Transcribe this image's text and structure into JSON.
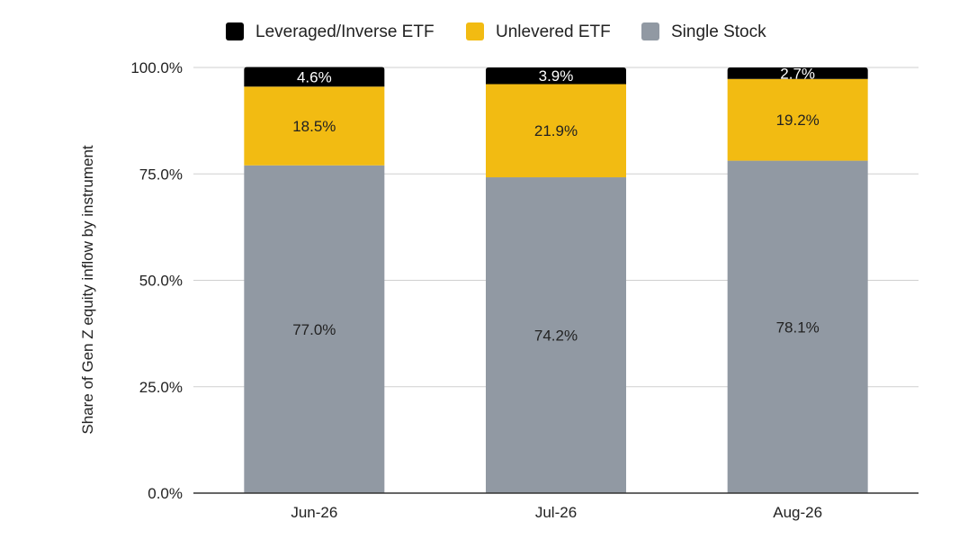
{
  "chart_data": {
    "type": "bar",
    "stacked": true,
    "categories": [
      "Jun-26",
      "Jul-26",
      "Aug-26"
    ],
    "series": [
      {
        "name": "Single Stock",
        "color": "#9199a3",
        "values": [
          77.0,
          74.2,
          78.1
        ],
        "labels": [
          "77.0%",
          "74.2%",
          "78.1%"
        ]
      },
      {
        "name": "Unlevered ETF",
        "color": "#f2bb12",
        "values": [
          18.5,
          21.9,
          19.2
        ],
        "labels": [
          "18.5%",
          "21.9%",
          "19.2%"
        ]
      },
      {
        "name": "Leveraged/Inverse ETF",
        "color": "#000000",
        "values": [
          4.6,
          3.9,
          2.7
        ],
        "labels": [
          "4.6%",
          "3.9%",
          "2.7%"
        ]
      }
    ],
    "legend_order": [
      "Leveraged/Inverse ETF",
      "Unlevered ETF",
      "Single Stock"
    ],
    "legend_position": "top",
    "ylabel": "Share of Gen Z equity inflow by instrument",
    "xlabel": "",
    "ylim": [
      0,
      100
    ],
    "yticks": [
      0,
      25,
      50,
      75,
      100
    ],
    "ytick_labels": [
      "0.0%",
      "25.0%",
      "50.0%",
      "75.0%",
      "100.0%"
    ],
    "grid": true,
    "gridline_color": "#cfcfcf",
    "axis_color": "#333333"
  }
}
